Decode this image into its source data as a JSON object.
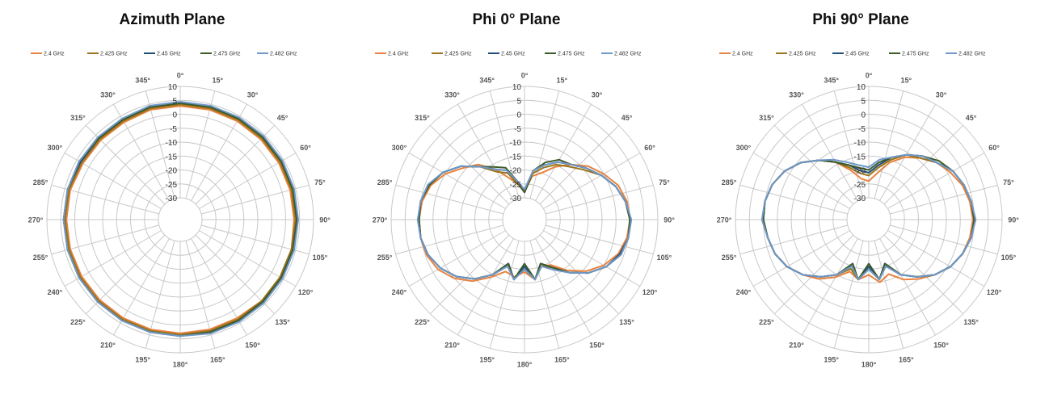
{
  "chart_data": [
    {
      "type": "polar-line",
      "title": "Azimuth Plane",
      "angle_ticks": [
        "0°",
        "15°",
        "30°",
        "45°",
        "60°",
        "75°",
        "90°",
        "105°",
        "120°",
        "135°",
        "150°",
        "165°",
        "180°",
        "195°",
        "210°",
        "225°",
        "240°",
        "255°",
        "270°",
        "285°",
        "300°",
        "315°",
        "330°",
        "345°"
      ],
      "radial_ticks": [
        "10",
        "5",
        "0",
        "-5",
        "-10",
        "-15",
        "-20",
        "-25",
        "-30"
      ],
      "rlim": [
        -30,
        10
      ],
      "grid": true,
      "legend_position": "top-center",
      "angles_deg": [
        0,
        15,
        30,
        45,
        60,
        75,
        90,
        105,
        120,
        135,
        150,
        165,
        180,
        195,
        210,
        225,
        240,
        255,
        270,
        285,
        300,
        315,
        330,
        345
      ],
      "series": [
        {
          "name": "2.4 GHz",
          "color": "#e8823e",
          "values": [
            3,
            3,
            3,
            3,
            3,
            3,
            3,
            3.5,
            3.5,
            3.5,
            3,
            3,
            3,
            3,
            3,
            3,
            3,
            3,
            3,
            3,
            2.5,
            2.5,
            2.5,
            3
          ]
        },
        {
          "name": "2.425 GHz",
          "color": "#9a7418",
          "values": [
            3.5,
            3.5,
            3.5,
            3.5,
            3.5,
            3.5,
            3.5,
            3.5,
            3.5,
            3.5,
            3.5,
            3.5,
            3.5,
            3.5,
            3.5,
            3.5,
            3.5,
            3.5,
            3.5,
            3.5,
            3,
            3,
            3,
            3.5
          ]
        },
        {
          "name": "2.45 GHz",
          "color": "#1f4e79",
          "values": [
            4,
            4,
            4,
            4,
            4,
            4,
            4,
            4,
            4,
            4,
            4,
            4,
            4,
            4,
            4,
            4,
            4,
            4,
            4,
            4,
            3.5,
            3.5,
            3.5,
            4
          ]
        },
        {
          "name": "2.475 GHz",
          "color": "#3b5a2a",
          "values": [
            4,
            4,
            4,
            4,
            4,
            4,
            4,
            4,
            4,
            4,
            4,
            4,
            4,
            4,
            4,
            4,
            4,
            4,
            4,
            4,
            4,
            3.5,
            3.5,
            4
          ]
        },
        {
          "name": "2.482 GHz",
          "color": "#6f97c8",
          "values": [
            4.5,
            4.5,
            4.5,
            4.5,
            4.5,
            4.5,
            4.5,
            4.5,
            4.5,
            4.5,
            4.5,
            4.5,
            4,
            4,
            4,
            4,
            4,
            4,
            4,
            4,
            4,
            4,
            4,
            4.5
          ]
        }
      ]
    },
    {
      "type": "polar-line",
      "title": "Phi 0° Plane",
      "angle_ticks": [
        "0°",
        "15°",
        "30°",
        "45°",
        "60°",
        "75°",
        "90°",
        "105°",
        "120°",
        "135°",
        "150°",
        "165°",
        "180°",
        "195°",
        "210°",
        "225°",
        "240°",
        "255°",
        "270°",
        "285°",
        "300°",
        "315°",
        "330°",
        "345°"
      ],
      "radial_ticks": [
        "10",
        "5",
        "0",
        "-5",
        "-10",
        "-15",
        "-20",
        "-25",
        "-30"
      ],
      "rlim": [
        -30,
        10
      ],
      "grid": true,
      "legend_position": "top-center",
      "angles_deg": [
        0,
        10,
        20,
        30,
        40,
        50,
        60,
        70,
        80,
        90,
        100,
        110,
        120,
        130,
        140,
        150,
        160,
        170,
        180,
        190,
        200,
        210,
        220,
        230,
        240,
        250,
        260,
        270,
        280,
        290,
        300,
        310,
        320,
        330,
        340,
        350
      ],
      "series": [
        {
          "name": "2.4 GHz",
          "color": "#e8823e",
          "values": [
            -28,
            -22,
            -20,
            -16,
            -12,
            -8,
            -5,
            -2,
            -0.5,
            0,
            -0.5,
            -2,
            -5,
            -9,
            -14,
            -19,
            -20,
            -16,
            -19,
            -17,
            -18,
            -14,
            -9,
            -5,
            -2,
            -0.5,
            0,
            0,
            -0.5,
            -2,
            -5,
            -9,
            -12,
            -17,
            -22,
            -25
          ]
        },
        {
          "name": "2.425 GHz",
          "color": "#9a7418",
          "values": [
            -28,
            -21,
            -18,
            -15,
            -13,
            -10,
            -6,
            -3,
            -1,
            0,
            0,
            -1.5,
            -4,
            -8,
            -13,
            -18,
            -20,
            -16,
            -20,
            -16,
            -20,
            -15,
            -10,
            -6,
            -3,
            -1,
            0,
            0,
            0,
            -1.5,
            -4,
            -8,
            -13,
            -18,
            -20,
            -25
          ]
        },
        {
          "name": "2.45 GHz",
          "color": "#1f4e79",
          "values": [
            -28,
            -20,
            -17,
            -14,
            -12,
            -9,
            -6,
            -3,
            -1,
            0,
            0,
            -1.5,
            -4,
            -8,
            -13,
            -18,
            -21,
            -16,
            -21,
            -16,
            -21,
            -15,
            -10,
            -6,
            -3,
            -1,
            0,
            0,
            0,
            -1.5,
            -4,
            -8,
            -13,
            -17,
            -19,
            -24
          ]
        },
        {
          "name": "2.475 GHz",
          "color": "#3b5a2a",
          "values": [
            -28,
            -20,
            -16,
            -13,
            -12,
            -9,
            -6,
            -3,
            -1,
            0,
            0,
            -1,
            -4,
            -8,
            -13,
            -18,
            -21,
            -16,
            -22,
            -16,
            -21,
            -15,
            -10,
            -6,
            -3,
            -1,
            0,
            0,
            0,
            -1.5,
            -4,
            -8,
            -13,
            -16,
            -18,
            -24
          ]
        },
        {
          "name": "2.482 GHz",
          "color": "#6f97c8",
          "values": [
            -27,
            -20,
            -17,
            -14,
            -12,
            -9,
            -6,
            -3,
            -1,
            0.5,
            0,
            -1,
            -4,
            -8,
            -13,
            -17,
            -20,
            -16,
            -20,
            -16,
            -20,
            -15,
            -10,
            -6,
            -3,
            -1,
            0,
            0.5,
            0,
            -1,
            -4,
            -8,
            -13,
            -17,
            -19,
            -24
          ]
        }
      ]
    },
    {
      "type": "polar-line",
      "title": "Phi 90° Plane",
      "angle_ticks": [
        "0°",
        "15°",
        "30°",
        "45°",
        "60°",
        "75°",
        "90°",
        "105°",
        "120°",
        "135°",
        "150°",
        "165°",
        "180°",
        "195°",
        "210°",
        "225°",
        "240°",
        "255°",
        "270°",
        "285°",
        "300°",
        "315°",
        "330°",
        "345°"
      ],
      "radial_ticks": [
        "10",
        "5",
        "0",
        "-5",
        "-10",
        "-15",
        "-20",
        "-25",
        "-30"
      ],
      "rlim": [
        -30,
        10
      ],
      "grid": true,
      "legend_position": "top-center",
      "angles_deg": [
        0,
        10,
        20,
        30,
        40,
        50,
        60,
        70,
        80,
        90,
        100,
        110,
        120,
        130,
        140,
        150,
        160,
        170,
        180,
        190,
        200,
        210,
        220,
        230,
        240,
        250,
        260,
        270,
        280,
        290,
        300,
        310,
        320,
        330,
        340,
        350
      ],
      "series": [
        {
          "name": "2.4 GHz",
          "color": "#e8823e",
          "values": [
            -24,
            -21,
            -16,
            -12,
            -9,
            -6,
            -4,
            -2,
            -1,
            -0.5,
            -1,
            -2,
            -4,
            -7,
            -10,
            -13,
            -17,
            -15,
            -18,
            -16,
            -18,
            -14,
            -10,
            -7,
            -4,
            -2,
            -1,
            0,
            0,
            -1,
            -3,
            -6,
            -10,
            -14,
            -19,
            -23
          ]
        },
        {
          "name": "2.425 GHz",
          "color": "#9a7418",
          "values": [
            -22,
            -19,
            -15,
            -11,
            -9,
            -6,
            -3,
            -1.5,
            -0.5,
            0,
            -0.5,
            -2,
            -4,
            -7,
            -11,
            -15,
            -20,
            -16,
            -20,
            -16,
            -19,
            -15,
            -11,
            -7,
            -4,
            -2,
            -1,
            0,
            0,
            -1,
            -3,
            -6,
            -10,
            -14,
            -18,
            -21
          ]
        },
        {
          "name": "2.45 GHz",
          "color": "#1f4e79",
          "values": [
            -21,
            -18,
            -14,
            -11,
            -8,
            -6,
            -3,
            -1.5,
            -0.5,
            0,
            -0.5,
            -2,
            -4,
            -7,
            -11,
            -15,
            -21,
            -16,
            -21,
            -16,
            -20,
            -15,
            -11,
            -7,
            -4,
            -2,
            -1,
            0,
            0,
            -1,
            -3,
            -6,
            -10,
            -14,
            -17,
            -20
          ]
        },
        {
          "name": "2.475 GHz",
          "color": "#3b5a2a",
          "values": [
            -20,
            -17,
            -14,
            -11,
            -8,
            -5,
            -3,
            -1.5,
            -0.5,
            0,
            -0.5,
            -2,
            -4,
            -7,
            -11,
            -15,
            -21,
            -16,
            -22,
            -16,
            -21,
            -15,
            -11,
            -7,
            -4,
            -2,
            -1,
            0,
            0,
            -1,
            -3,
            -6,
            -10,
            -14,
            -17,
            -19
          ]
        },
        {
          "name": "2.482 GHz",
          "color": "#6f97c8",
          "values": [
            -19,
            -16,
            -14,
            -11,
            -8,
            -6,
            -3,
            -1.5,
            -0.5,
            0.5,
            -0.5,
            -2,
            -4,
            -7,
            -11,
            -15,
            -20,
            -16,
            -20,
            -16,
            -20,
            -15,
            -11,
            -7,
            -4,
            -2,
            -1,
            0.5,
            0,
            -1,
            -3,
            -6,
            -10,
            -13,
            -16,
            -18
          ]
        }
      ]
    }
  ]
}
